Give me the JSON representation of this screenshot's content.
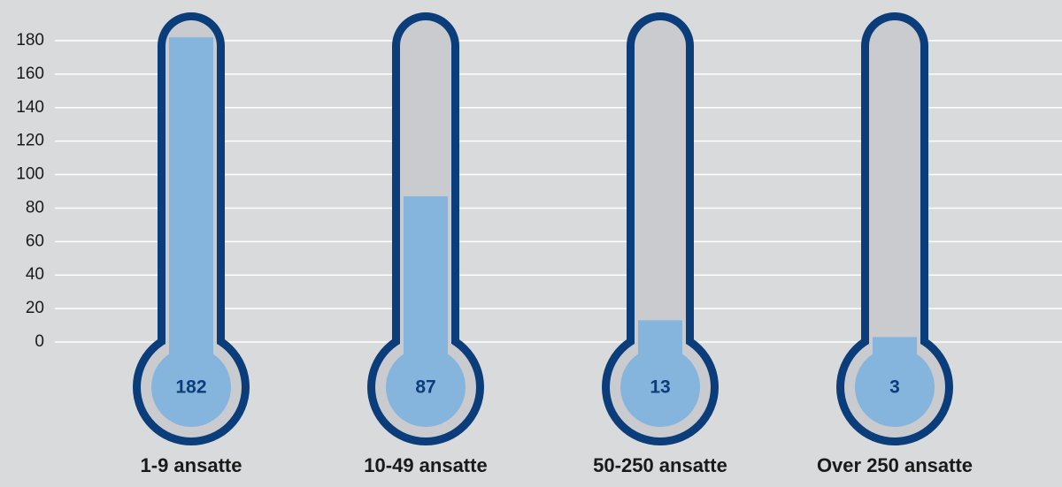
{
  "chart_data": {
    "type": "bar",
    "categories": [
      "1-9 ansatte",
      "10-49 ansatte",
      "50-250 ansatte",
      "Over 250 ansatte"
    ],
    "values": [
      182,
      87,
      13,
      3
    ],
    "color": "#85b5dd",
    "ylim": [
      0,
      180
    ],
    "yticks": [
      0,
      20,
      40,
      60,
      80,
      100,
      120,
      140,
      160,
      180
    ],
    "grid": true
  }
}
